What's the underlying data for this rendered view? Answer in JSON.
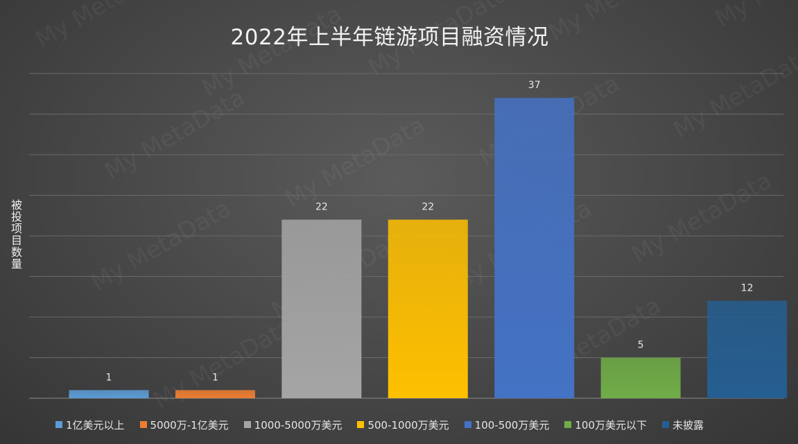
{
  "chart_data": {
    "type": "bar",
    "title": "2022年上半年链游项目融资情况",
    "ylabel": "被投项目数量",
    "xlabel": "",
    "ylim": [
      0,
      40
    ],
    "grid": true,
    "legend_position": "bottom",
    "categories": [
      "1亿美元以上",
      "5000万-1亿美元",
      "1000-5000万美元",
      "500-1000万美元",
      "100-500万美元",
      "100万美元以下",
      "未披露"
    ],
    "values": [
      1,
      1,
      22,
      22,
      37,
      5,
      12
    ],
    "data_labels": [
      "1",
      "1",
      "22",
      "22",
      "37",
      "5",
      "12"
    ],
    "colors": [
      "#5b9bd5",
      "#ed7d31",
      "#a5a5a5",
      "#ffc000",
      "#4472c4",
      "#70ad47",
      "#255e91"
    ]
  },
  "watermark": "My MetaData"
}
